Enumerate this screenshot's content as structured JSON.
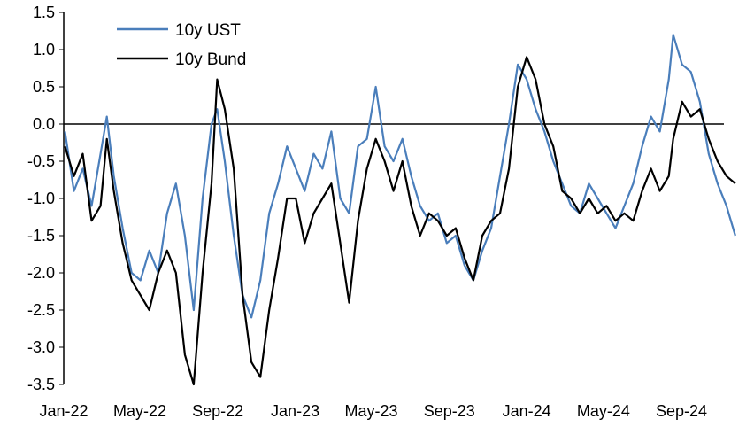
{
  "chart_data": {
    "type": "line",
    "title": "",
    "xlabel": "",
    "ylabel": "",
    "ylim": [
      -3.5,
      1.5
    ],
    "xlim": [
      "2022-01",
      "2024-12"
    ],
    "y_ticks": [
      "1.5",
      "1.0",
      "0.5",
      "0.0",
      "-0.5",
      "-1.0",
      "-1.5",
      "-2.0",
      "-2.5",
      "-3.0",
      "-3.5"
    ],
    "x_ticks": [
      {
        "label": "Jan-22",
        "date": "2022-01"
      },
      {
        "label": "May-22",
        "date": "2022-05"
      },
      {
        "label": "Sep-22",
        "date": "2022-09"
      },
      {
        "label": "Jan-23",
        "date": "2023-01"
      },
      {
        "label": "May-23",
        "date": "2023-05"
      },
      {
        "label": "Sep-23",
        "date": "2023-09"
      },
      {
        "label": "Jan-24",
        "date": "2024-01"
      },
      {
        "label": "May-24",
        "date": "2024-05"
      },
      {
        "label": "Sep-24",
        "date": "2024-09"
      }
    ],
    "zero_line": true,
    "grid": false,
    "legend_position": "top-left",
    "series": [
      {
        "name": "10y UST",
        "color": "#4a7ebb",
        "points": [
          [
            "2022-01-03",
            -0.1
          ],
          [
            "2022-01-17",
            -0.9
          ],
          [
            "2022-01-31",
            -0.6
          ],
          [
            "2022-02-14",
            -1.1
          ],
          [
            "2022-02-28",
            -0.4
          ],
          [
            "2022-03-10",
            0.1
          ],
          [
            "2022-03-21",
            -0.7
          ],
          [
            "2022-04-04",
            -1.4
          ],
          [
            "2022-04-18",
            -2.0
          ],
          [
            "2022-05-02",
            -2.1
          ],
          [
            "2022-05-16",
            -1.7
          ],
          [
            "2022-05-30",
            -2.0
          ],
          [
            "2022-06-13",
            -1.2
          ],
          [
            "2022-06-27",
            -0.8
          ],
          [
            "2022-07-11",
            -1.5
          ],
          [
            "2022-07-25",
            -2.5
          ],
          [
            "2022-08-08",
            -1.0
          ],
          [
            "2022-08-22",
            0.0
          ],
          [
            "2022-08-31",
            0.2
          ],
          [
            "2022-09-12",
            -0.5
          ],
          [
            "2022-09-26",
            -1.5
          ],
          [
            "2022-10-10",
            -2.3
          ],
          [
            "2022-10-24",
            -2.6
          ],
          [
            "2022-11-07",
            -2.1
          ],
          [
            "2022-11-21",
            -1.2
          ],
          [
            "2022-12-05",
            -0.8
          ],
          [
            "2022-12-19",
            -0.3
          ],
          [
            "2023-01-02",
            -0.6
          ],
          [
            "2023-01-16",
            -0.9
          ],
          [
            "2023-01-30",
            -0.4
          ],
          [
            "2023-02-13",
            -0.6
          ],
          [
            "2023-02-27",
            -0.1
          ],
          [
            "2023-03-13",
            -1.0
          ],
          [
            "2023-03-27",
            -1.2
          ],
          [
            "2023-04-10",
            -0.3
          ],
          [
            "2023-04-24",
            -0.2
          ],
          [
            "2023-05-08",
            0.5
          ],
          [
            "2023-05-22",
            -0.3
          ],
          [
            "2023-06-05",
            -0.5
          ],
          [
            "2023-06-19",
            -0.2
          ],
          [
            "2023-07-03",
            -0.7
          ],
          [
            "2023-07-17",
            -1.1
          ],
          [
            "2023-07-31",
            -1.3
          ],
          [
            "2023-08-14",
            -1.2
          ],
          [
            "2023-08-28",
            -1.6
          ],
          [
            "2023-09-11",
            -1.5
          ],
          [
            "2023-09-25",
            -1.9
          ],
          [
            "2023-10-09",
            -2.1
          ],
          [
            "2023-10-23",
            -1.7
          ],
          [
            "2023-11-06",
            -1.4
          ],
          [
            "2023-11-20",
            -0.7
          ],
          [
            "2023-12-04",
            0.0
          ],
          [
            "2023-12-18",
            0.8
          ],
          [
            "2024-01-01",
            0.6
          ],
          [
            "2024-01-15",
            0.2
          ],
          [
            "2024-01-29",
            -0.1
          ],
          [
            "2024-02-12",
            -0.5
          ],
          [
            "2024-02-26",
            -0.8
          ],
          [
            "2024-03-11",
            -1.1
          ],
          [
            "2024-03-25",
            -1.2
          ],
          [
            "2024-04-08",
            -0.8
          ],
          [
            "2024-04-22",
            -1.0
          ],
          [
            "2024-05-06",
            -1.2
          ],
          [
            "2024-05-20",
            -1.4
          ],
          [
            "2024-06-03",
            -1.1
          ],
          [
            "2024-06-17",
            -0.8
          ],
          [
            "2024-07-01",
            -0.3
          ],
          [
            "2024-07-15",
            0.1
          ],
          [
            "2024-07-29",
            -0.1
          ],
          [
            "2024-08-12",
            0.6
          ],
          [
            "2024-08-19",
            1.2
          ],
          [
            "2024-09-02",
            0.8
          ],
          [
            "2024-09-16",
            0.7
          ],
          [
            "2024-09-30",
            0.3
          ],
          [
            "2024-10-14",
            -0.4
          ],
          [
            "2024-10-28",
            -0.8
          ],
          [
            "2024-11-11",
            -1.1
          ],
          [
            "2024-11-25",
            -1.5
          ]
        ]
      },
      {
        "name": "10y Bund",
        "color": "#000000",
        "points": [
          [
            "2022-01-03",
            -0.3
          ],
          [
            "2022-01-17",
            -0.7
          ],
          [
            "2022-01-31",
            -0.4
          ],
          [
            "2022-02-14",
            -1.3
          ],
          [
            "2022-02-28",
            -1.1
          ],
          [
            "2022-03-10",
            -0.2
          ],
          [
            "2022-03-21",
            -0.9
          ],
          [
            "2022-04-04",
            -1.6
          ],
          [
            "2022-04-18",
            -2.1
          ],
          [
            "2022-05-02",
            -2.3
          ],
          [
            "2022-05-16",
            -2.5
          ],
          [
            "2022-05-30",
            -2.0
          ],
          [
            "2022-06-13",
            -1.7
          ],
          [
            "2022-06-27",
            -2.0
          ],
          [
            "2022-07-11",
            -3.1
          ],
          [
            "2022-07-25",
            -3.5
          ],
          [
            "2022-08-08",
            -2.0
          ],
          [
            "2022-08-22",
            -0.8
          ],
          [
            "2022-08-31",
            0.6
          ],
          [
            "2022-09-12",
            0.2
          ],
          [
            "2022-09-26",
            -0.6
          ],
          [
            "2022-10-10",
            -2.3
          ],
          [
            "2022-10-24",
            -3.2
          ],
          [
            "2022-11-07",
            -3.4
          ],
          [
            "2022-11-21",
            -2.5
          ],
          [
            "2022-12-05",
            -1.8
          ],
          [
            "2022-12-19",
            -1.0
          ],
          [
            "2023-01-02",
            -1.0
          ],
          [
            "2023-01-16",
            -1.6
          ],
          [
            "2023-01-30",
            -1.2
          ],
          [
            "2023-02-13",
            -1.0
          ],
          [
            "2023-02-27",
            -0.8
          ],
          [
            "2023-03-13",
            -1.6
          ],
          [
            "2023-03-27",
            -2.4
          ],
          [
            "2023-04-10",
            -1.3
          ],
          [
            "2023-04-24",
            -0.6
          ],
          [
            "2023-05-08",
            -0.2
          ],
          [
            "2023-05-22",
            -0.5
          ],
          [
            "2023-06-05",
            -0.9
          ],
          [
            "2023-06-19",
            -0.5
          ],
          [
            "2023-07-03",
            -1.1
          ],
          [
            "2023-07-17",
            -1.5
          ],
          [
            "2023-07-31",
            -1.2
          ],
          [
            "2023-08-14",
            -1.3
          ],
          [
            "2023-08-28",
            -1.5
          ],
          [
            "2023-09-11",
            -1.4
          ],
          [
            "2023-09-25",
            -1.8
          ],
          [
            "2023-10-09",
            -2.1
          ],
          [
            "2023-10-23",
            -1.5
          ],
          [
            "2023-11-06",
            -1.3
          ],
          [
            "2023-11-20",
            -1.2
          ],
          [
            "2023-12-04",
            -0.6
          ],
          [
            "2023-12-18",
            0.5
          ],
          [
            "2024-01-01",
            0.9
          ],
          [
            "2024-01-15",
            0.6
          ],
          [
            "2024-01-29",
            0.0
          ],
          [
            "2024-02-12",
            -0.3
          ],
          [
            "2024-02-26",
            -0.9
          ],
          [
            "2024-03-11",
            -1.0
          ],
          [
            "2024-03-25",
            -1.2
          ],
          [
            "2024-04-08",
            -1.0
          ],
          [
            "2024-04-22",
            -1.2
          ],
          [
            "2024-05-06",
            -1.1
          ],
          [
            "2024-05-20",
            -1.3
          ],
          [
            "2024-06-03",
            -1.2
          ],
          [
            "2024-06-17",
            -1.3
          ],
          [
            "2024-07-01",
            -0.9
          ],
          [
            "2024-07-15",
            -0.6
          ],
          [
            "2024-07-29",
            -0.9
          ],
          [
            "2024-08-12",
            -0.7
          ],
          [
            "2024-08-19",
            -0.2
          ],
          [
            "2024-09-02",
            0.3
          ],
          [
            "2024-09-16",
            0.1
          ],
          [
            "2024-09-30",
            0.2
          ],
          [
            "2024-10-14",
            -0.2
          ],
          [
            "2024-10-28",
            -0.5
          ],
          [
            "2024-11-11",
            -0.7
          ],
          [
            "2024-11-25",
            -0.8
          ]
        ]
      }
    ]
  }
}
